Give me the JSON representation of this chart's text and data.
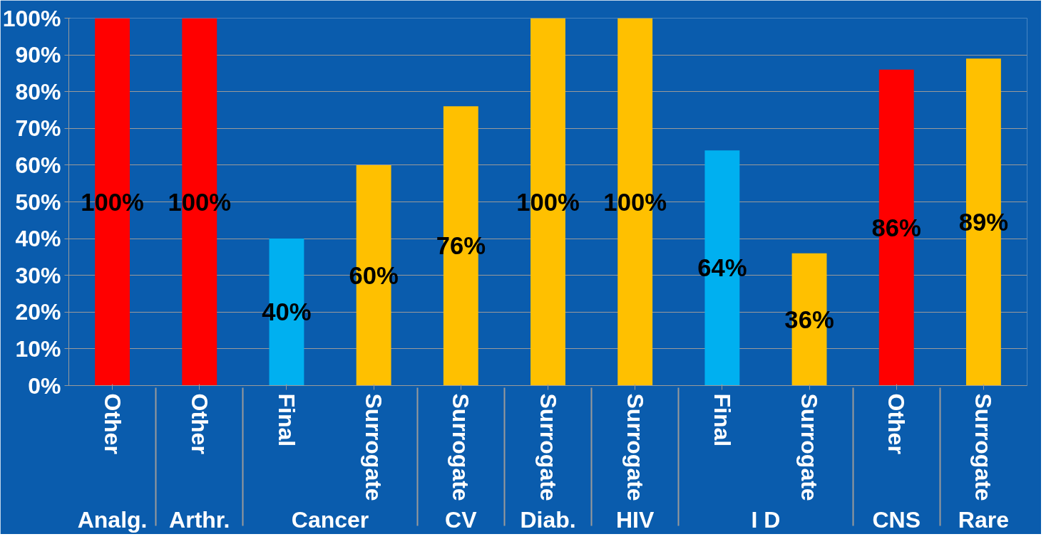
{
  "chart_data": {
    "type": "bar",
    "categories": [
      [
        "Analg.",
        "Other"
      ],
      [
        "Arthr.",
        "Other"
      ],
      [
        "Cancer",
        "Final"
      ],
      [
        null,
        "Surrogate"
      ],
      [
        "CV",
        "Surrogate"
      ],
      [
        "Diab.",
        "Surrogate"
      ],
      [
        "HIV",
        "Surrogate"
      ],
      [
        "I D",
        "Final"
      ],
      [
        null,
        "Surrogate"
      ],
      [
        "CNS",
        "Other"
      ],
      [
        "Rare",
        "Surrogate"
      ]
    ],
    "values": [
      100,
      100,
      40,
      60,
      76,
      100,
      100,
      64,
      36,
      86,
      89
    ],
    "colors": [
      "#ff0000",
      "#ff0000",
      "#00b0f0",
      "#ffc000",
      "#ffc000",
      "#ffc000",
      "#ffc000",
      "#00b0f0",
      "#ffc000",
      "#ff0000",
      "#ffc000"
    ],
    "value_labels": [
      "100%",
      "100%",
      "40%",
      "60%",
      "76%",
      "100%",
      "100%",
      "64%",
      "36%",
      "86%",
      "89%"
    ],
    "ylim": [
      0,
      100
    ],
    "yticks": [
      {
        "value": 0,
        "label": "0%"
      },
      {
        "value": 10,
        "label": "10%"
      },
      {
        "value": 20,
        "label": "20%"
      },
      {
        "value": 30,
        "label": "30%"
      },
      {
        "value": 40,
        "label": "40%"
      },
      {
        "value": 50,
        "label": "50%"
      },
      {
        "value": 60,
        "label": "60%"
      },
      {
        "value": 70,
        "label": "70%"
      },
      {
        "value": 80,
        "label": "80%"
      },
      {
        "value": 90,
        "label": "90%"
      },
      {
        "value": 100,
        "label": "100%"
      }
    ],
    "grid": "y"
  }
}
